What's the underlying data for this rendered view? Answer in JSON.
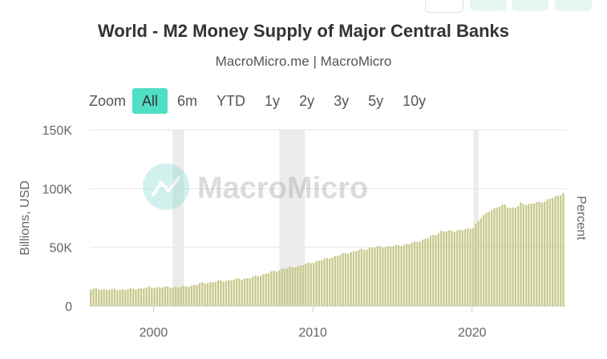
{
  "header": {
    "title": "World - M2 Money Supply of Major Central Banks",
    "subtitle": "MacroMicro.me | MacroMicro"
  },
  "range_selector": {
    "label": "Zoom",
    "buttons": [
      "All",
      "6m",
      "YTD",
      "1y",
      "2y",
      "3y",
      "5y",
      "10y"
    ],
    "active": "All"
  },
  "watermark": "MacroMicro",
  "colors": {
    "bar": "#c8c88a",
    "recession": "#ececec",
    "accent": "#4fdfc3",
    "grid": "#e6e6e6"
  },
  "chart_data": {
    "type": "bar",
    "title": "World - M2 Money Supply of Major Central Banks",
    "ylabel": "Billions, USD",
    "y2label": "Percent",
    "ylim": [
      0,
      150000
    ],
    "xlim": [
      1996.0,
      2025.9
    ],
    "y_ticks": [
      0,
      50000,
      100000,
      150000
    ],
    "y_tick_labels": [
      "0",
      "50K",
      "100K",
      "150K"
    ],
    "x_ticks": [
      2000,
      2010,
      2020
    ],
    "x_tick_labels": [
      "2000",
      "2010",
      "2020"
    ],
    "recession_periods": [
      [
        2001.2,
        2001.9
      ],
      [
        2007.9,
        2009.5
      ],
      [
        2020.1,
        2020.4
      ]
    ],
    "anchors": [
      [
        1996.0,
        14500
      ],
      [
        1998.0,
        14000
      ],
      [
        2000.0,
        16000
      ],
      [
        2002.0,
        16500
      ],
      [
        2003.0,
        19500
      ],
      [
        2004.0,
        21000
      ],
      [
        2005.0,
        22500
      ],
      [
        2006.0,
        24000
      ],
      [
        2007.0,
        27500
      ],
      [
        2008.0,
        31500
      ],
      [
        2009.0,
        34000
      ],
      [
        2010.0,
        37500
      ],
      [
        2011.0,
        41000
      ],
      [
        2012.0,
        45000
      ],
      [
        2013.0,
        48000
      ],
      [
        2014.0,
        50500
      ],
      [
        2015.0,
        51000
      ],
      [
        2016.0,
        53000
      ],
      [
        2017.0,
        57000
      ],
      [
        2018.0,
        63500
      ],
      [
        2018.7,
        64000
      ],
      [
        2019.5,
        65000
      ],
      [
        2020.0,
        67000
      ],
      [
        2020.5,
        75000
      ],
      [
        2021.0,
        81000
      ],
      [
        2021.5,
        84000
      ],
      [
        2022.0,
        86500
      ],
      [
        2022.4,
        83000
      ],
      [
        2022.8,
        84500
      ],
      [
        2023.0,
        87500
      ],
      [
        2023.5,
        86500
      ],
      [
        2024.0,
        88000
      ],
      [
        2024.5,
        89500
      ],
      [
        2025.0,
        92000
      ],
      [
        2025.7,
        96500
      ]
    ]
  }
}
